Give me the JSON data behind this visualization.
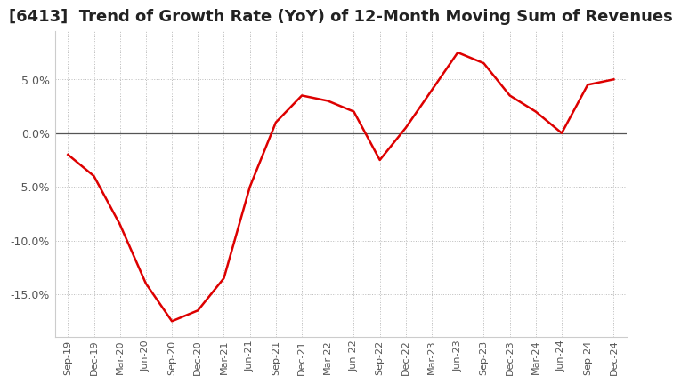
{
  "title": "[6413]  Trend of Growth Rate (YoY) of 12-Month Moving Sum of Revenues",
  "title_fontsize": 13,
  "x_labels": [
    "Sep-19",
    "Dec-19",
    "Mar-20",
    "Jun-20",
    "Sep-20",
    "Dec-20",
    "Mar-21",
    "Jun-21",
    "Sep-21",
    "Dec-21",
    "Mar-22",
    "Jun-22",
    "Sep-22",
    "Dec-22",
    "Mar-23",
    "Jun-23",
    "Sep-23",
    "Dec-23",
    "Mar-24",
    "Jun-24",
    "Sep-24",
    "Dec-24"
  ],
  "y_values": [
    -2.0,
    -4.0,
    -8.5,
    -14.0,
    -17.5,
    -16.5,
    -13.5,
    -5.0,
    1.0,
    3.5,
    3.0,
    2.0,
    -2.5,
    0.5,
    4.0,
    7.5,
    6.5,
    3.5,
    2.0,
    0.0,
    4.5,
    5.0
  ],
  "ylim": [
    -19.0,
    9.5
  ],
  "yticks": [
    -15.0,
    -10.0,
    -5.0,
    0.0,
    5.0
  ],
  "line_color": "#dd0000",
  "background_color": "#ffffff",
  "grid_color": "#bbbbbb",
  "zero_line_color": "#555555",
  "tick_color": "#555555",
  "title_color": "#222222"
}
